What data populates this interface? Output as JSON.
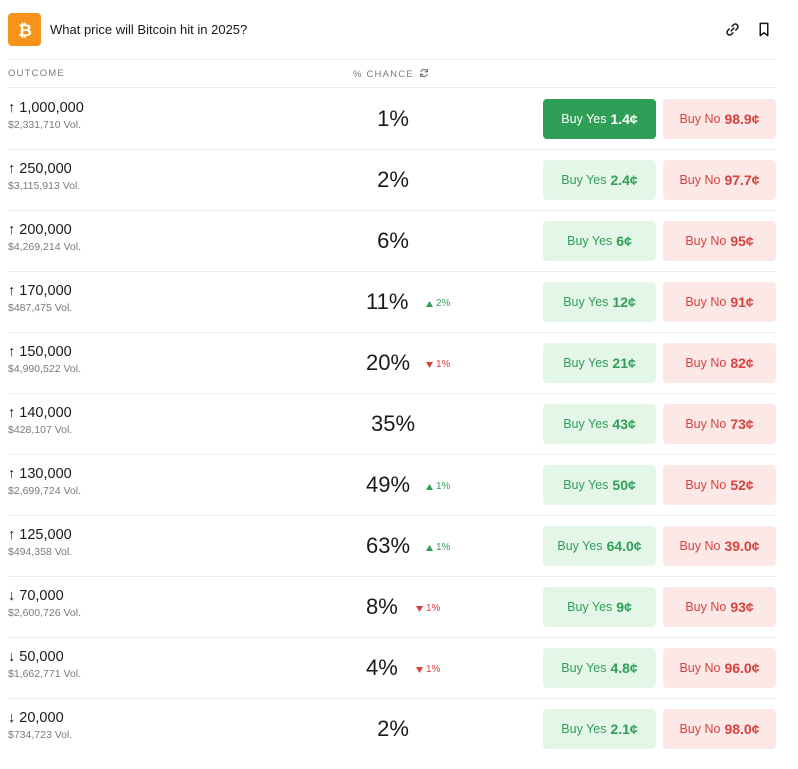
{
  "header": {
    "title": "What price will Bitcoin hit in 2025?",
    "logo_icon": "bitcoin-icon",
    "actions": [
      "link-icon",
      "bookmark-icon"
    ]
  },
  "columns": {
    "outcome": "OUTCOME",
    "chance": "% CHANCE"
  },
  "colors": {
    "bitcoin": "#f7931a",
    "yes": "#2f9e57",
    "no": "#d9423c"
  },
  "rows": [
    {
      "outcome": "↑ 1,000,000",
      "volume": "$2,331,710 Vol.",
      "chance": "1%",
      "delta": "",
      "delta_dir": "",
      "yes_label": "Buy Yes",
      "yes_price": "1.4¢",
      "no_label": "Buy No",
      "no_price": "98.9¢",
      "yes_active": true
    },
    {
      "outcome": "↑ 250,000",
      "volume": "$3,115,913 Vol.",
      "chance": "2%",
      "delta": "",
      "delta_dir": "",
      "yes_label": "Buy Yes",
      "yes_price": "2.4¢",
      "no_label": "Buy No",
      "no_price": "97.7¢",
      "yes_active": false
    },
    {
      "outcome": "↑ 200,000",
      "volume": "$4,269,214 Vol.",
      "chance": "6%",
      "delta": "",
      "delta_dir": "",
      "yes_label": "Buy Yes",
      "yes_price": "6¢",
      "no_label": "Buy No",
      "no_price": "95¢",
      "yes_active": false
    },
    {
      "outcome": "↑ 170,000",
      "volume": "$487,475 Vol.",
      "chance": "11%",
      "delta": "2%",
      "delta_dir": "up",
      "yes_label": "Buy Yes",
      "yes_price": "12¢",
      "no_label": "Buy No",
      "no_price": "91¢",
      "yes_active": false
    },
    {
      "outcome": "↑ 150,000",
      "volume": "$4,990,522 Vol.",
      "chance": "20%",
      "delta": "1%",
      "delta_dir": "down",
      "yes_label": "Buy Yes",
      "yes_price": "21¢",
      "no_label": "Buy No",
      "no_price": "82¢",
      "yes_active": false
    },
    {
      "outcome": "↑ 140,000",
      "volume": "$428,107 Vol.",
      "chance": "35%",
      "delta": "",
      "delta_dir": "",
      "yes_label": "Buy Yes",
      "yes_price": "43¢",
      "no_label": "Buy No",
      "no_price": "73¢",
      "yes_active": false
    },
    {
      "outcome": "↑ 130,000",
      "volume": "$2,699,724 Vol.",
      "chance": "49%",
      "delta": "1%",
      "delta_dir": "up",
      "yes_label": "Buy Yes",
      "yes_price": "50¢",
      "no_label": "Buy No",
      "no_price": "52¢",
      "yes_active": false
    },
    {
      "outcome": "↑ 125,000",
      "volume": "$494,358 Vol.",
      "chance": "63%",
      "delta": "1%",
      "delta_dir": "up",
      "yes_label": "Buy Yes",
      "yes_price": "64.0¢",
      "no_label": "Buy No",
      "no_price": "39.0¢",
      "yes_active": false
    },
    {
      "outcome": "↓ 70,000",
      "volume": "$2,600,726 Vol.",
      "chance": "8%",
      "delta": "1%",
      "delta_dir": "down",
      "yes_label": "Buy Yes",
      "yes_price": "9¢",
      "no_label": "Buy No",
      "no_price": "93¢",
      "yes_active": false
    },
    {
      "outcome": "↓ 50,000",
      "volume": "$1,662,771 Vol.",
      "chance": "4%",
      "delta": "1%",
      "delta_dir": "down",
      "yes_label": "Buy Yes",
      "yes_price": "4.8¢",
      "no_label": "Buy No",
      "no_price": "96.0¢",
      "yes_active": false
    },
    {
      "outcome": "↓ 20,000",
      "volume": "$734,723 Vol.",
      "chance": "2%",
      "delta": "",
      "delta_dir": "",
      "yes_label": "Buy Yes",
      "yes_price": "2.1¢",
      "no_label": "Buy No",
      "no_price": "98.0¢",
      "yes_active": false
    }
  ]
}
